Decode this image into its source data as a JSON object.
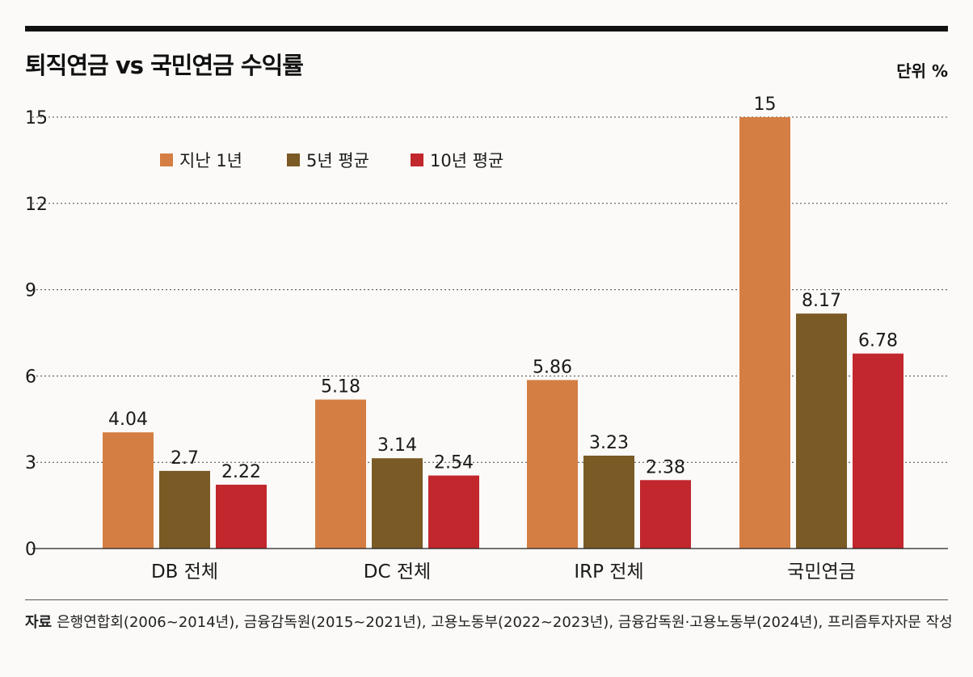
{
  "title": "퇴직연금 vs 국민연금 수익률",
  "unit": "단위 %",
  "source_label": "자료",
  "source_text": "은행연합회(2006~2014년), 금융감독원(2015~2021년), 고용노동부(2022~2023년), 금융감독원·고용노동부(2024년), 프리즘투자자문 작성",
  "colors": {
    "last1y": "#d57e43",
    "avg5y": "#7a5a25",
    "avg10y": "#c1272d"
  },
  "chart_data": {
    "type": "bar",
    "title": "퇴직연금 vs 국민연금 수익률",
    "xlabel": "",
    "ylabel": "",
    "ylim": [
      0,
      15
    ],
    "yticks": [
      0,
      3,
      6,
      9,
      12,
      15
    ],
    "grid": true,
    "legend_position": "top-left",
    "categories": [
      "DB 전체",
      "DC 전체",
      "IRP 전체",
      "국민연금"
    ],
    "series": [
      {
        "name": "지난 1년",
        "values": [
          4.04,
          5.18,
          5.86,
          15
        ]
      },
      {
        "name": "5년 평균",
        "values": [
          2.7,
          3.14,
          3.23,
          8.17
        ]
      },
      {
        "name": "10년 평균",
        "values": [
          2.22,
          2.54,
          2.38,
          6.78
        ]
      }
    ]
  }
}
